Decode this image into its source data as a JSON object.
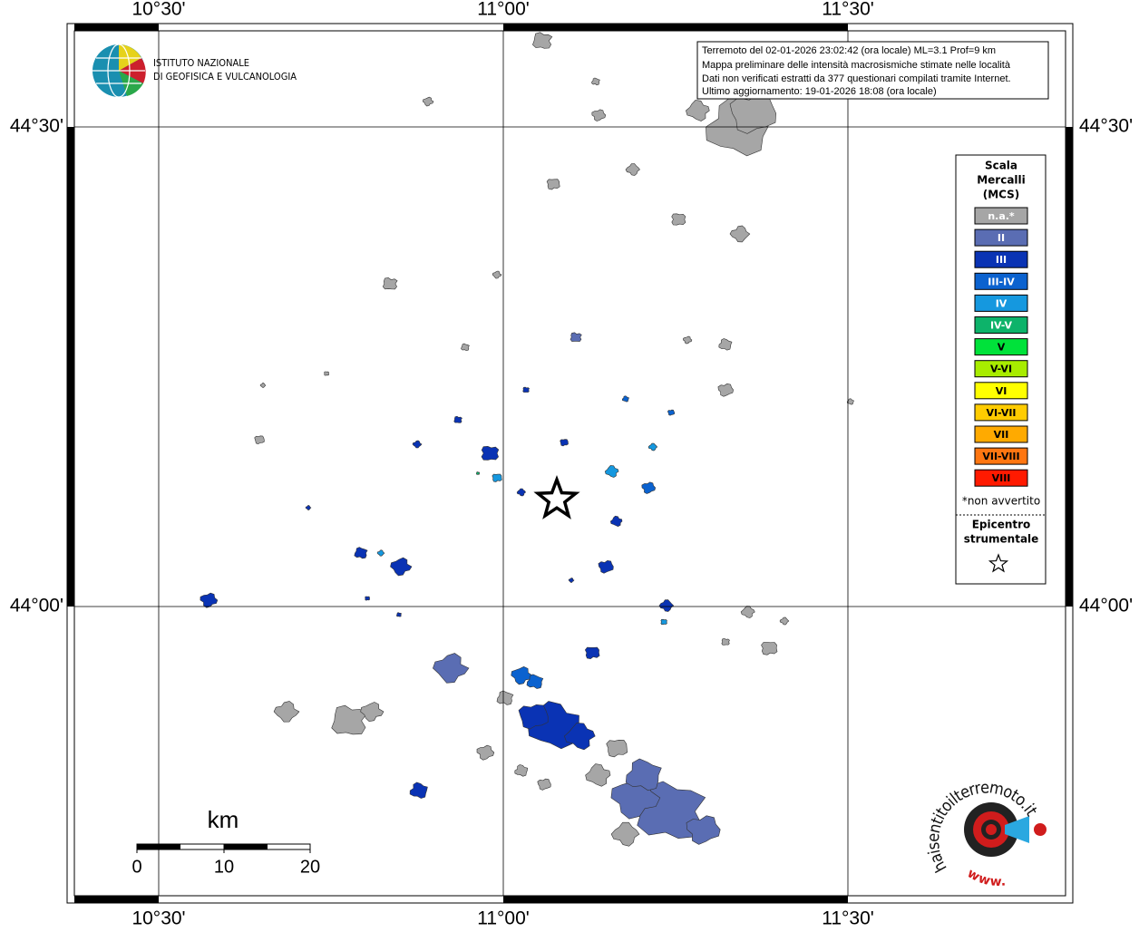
{
  "map": {
    "lon_labels": [
      "10°30'",
      "11°00'",
      "11°30'"
    ],
    "lat_labels": [
      "44°30'",
      "44°00'"
    ],
    "info": [
      "Terremoto del 02-01-2026 23:02:42 (ora locale) ML=3.1 Prof=9 km",
      "Mappa preliminare delle intensità macrosismiche stimate nelle località",
      "Dati non verificati estratti da 377 questionari compilati tramite Internet.",
      "Ultimo aggiornamento: 19-01-2026 18:08 (ora locale)"
    ],
    "legend": {
      "title": [
        "Scala",
        "Mercalli",
        "(MCS)"
      ],
      "items": [
        {
          "label": "n.a.*",
          "color": "#a6a6a6"
        },
        {
          "label": "II",
          "color": "#5a6db3"
        },
        {
          "label": "III",
          "color": "#0a33b4"
        },
        {
          "label": "III-IV",
          "color": "#0b62cf"
        },
        {
          "label": "IV",
          "color": "#1598df"
        },
        {
          "label": "IV-V",
          "color": "#0db36a"
        },
        {
          "label": "V",
          "color": "#00e23a"
        },
        {
          "label": "V-VI",
          "color": "#a8ec00"
        },
        {
          "label": "VI",
          "color": "#ffff00"
        },
        {
          "label": "VI-VII",
          "color": "#ffcc00"
        },
        {
          "label": "VII",
          "color": "#ffaa00"
        },
        {
          "label": "VII-VIII",
          "color": "#ff7611"
        },
        {
          "label": "VIII",
          "color": "#ff1a00"
        }
      ],
      "note": "*non avvertito",
      "epicenter": [
        "Epicentro",
        "strumentale"
      ]
    },
    "scale": {
      "unit": "km",
      "ticks": [
        "0",
        "10",
        "20"
      ]
    },
    "logo": [
      "ISTITUTO NAZIONALE",
      "DI GEOFISICA E VULCANOLOGIA"
    ],
    "site_logo": [
      "haisentitoilterremoto.it",
      "www."
    ]
  }
}
